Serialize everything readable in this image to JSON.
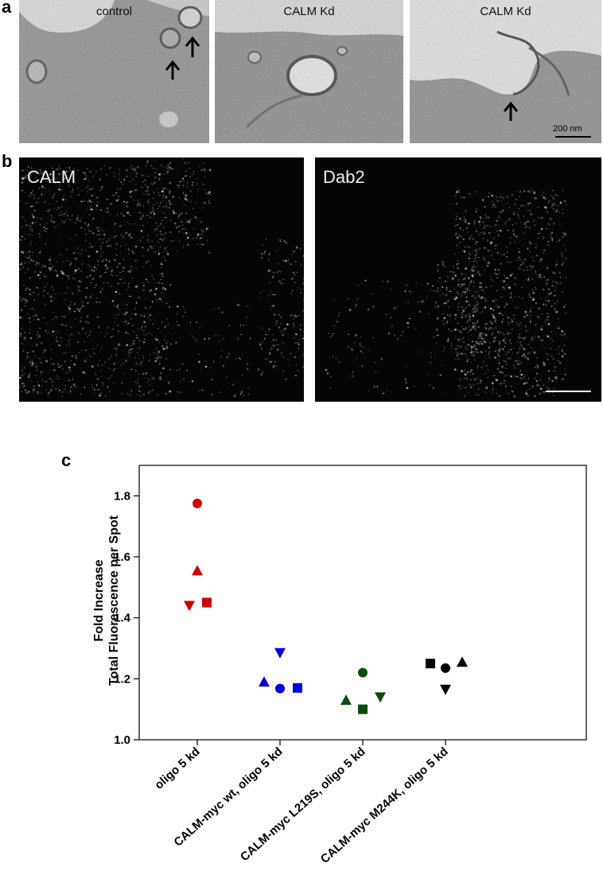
{
  "panel_a": {
    "letter": "a",
    "images": [
      {
        "label": "control"
      },
      {
        "label": "CALM Kd"
      },
      {
        "label": "CALM Kd"
      }
    ],
    "scalebar_label": "200 nm"
  },
  "panel_b": {
    "letter": "b",
    "images": [
      {
        "label": "CALM"
      },
      {
        "label": "Dab2"
      }
    ]
  },
  "panel_c": {
    "letter": "c"
  },
  "chart_data": {
    "type": "scatter",
    "ylabel_line1": "Fold Increase",
    "ylabel_line2": "Total Fluorescence per Spot",
    "ylim": [
      1.0,
      1.9
    ],
    "yticks": [
      "1.0",
      "1.2",
      "1.4",
      "1.6",
      "1.8"
    ],
    "categories": [
      "oligo 5 kd",
      "CALM-myc wt, oligo 5 kd",
      "CALM-myc L219S, oligo 5 kd",
      "CALM-myc M244K, oligo 5 kd"
    ],
    "colors": [
      "#d10000",
      "#0000dd",
      "#0a4d0a",
      "#000000"
    ],
    "points": [
      {
        "category": 0,
        "marker": "circle",
        "y": 1.775
      },
      {
        "category": 0,
        "marker": "triangle-up",
        "y": 1.555
      },
      {
        "category": 0,
        "marker": "triangle-down",
        "y": 1.44
      },
      {
        "category": 0,
        "marker": "square",
        "y": 1.45
      },
      {
        "category": 1,
        "marker": "triangle-down",
        "y": 1.285
      },
      {
        "category": 1,
        "marker": "triangle-up",
        "y": 1.19
      },
      {
        "category": 1,
        "marker": "circle",
        "y": 1.168
      },
      {
        "category": 1,
        "marker": "square",
        "y": 1.17
      },
      {
        "category": 2,
        "marker": "circle",
        "y": 1.22
      },
      {
        "category": 2,
        "marker": "triangle-up",
        "y": 1.13
      },
      {
        "category": 2,
        "marker": "square",
        "y": 1.1
      },
      {
        "category": 2,
        "marker": "triangle-down",
        "y": 1.14
      },
      {
        "category": 3,
        "marker": "square",
        "y": 1.25
      },
      {
        "category": 3,
        "marker": "circle",
        "y": 1.235
      },
      {
        "category": 3,
        "marker": "triangle-up",
        "y": 1.255
      },
      {
        "category": 3,
        "marker": "triangle-down",
        "y": 1.165
      }
    ]
  }
}
